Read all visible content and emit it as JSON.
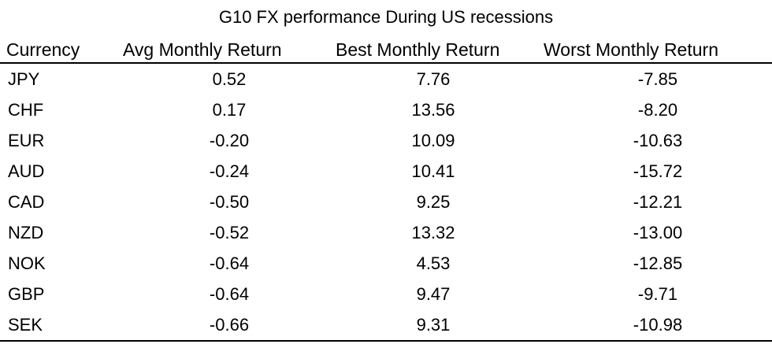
{
  "chart_data": {
    "type": "table",
    "title": "G10 FX performance During US recessions",
    "columns": [
      "Currency",
      "Avg Monthly Return",
      "Best Monthly Return",
      "Worst Monthly Return"
    ],
    "rows": [
      [
        "JPY",
        "0.52",
        "7.76",
        "-7.85"
      ],
      [
        "CHF",
        "0.17",
        "13.56",
        "-8.20"
      ],
      [
        "EUR",
        "-0.20",
        "10.09",
        "-10.63"
      ],
      [
        "AUD",
        "-0.24",
        "10.41",
        "-15.72"
      ],
      [
        "CAD",
        "-0.50",
        "9.25",
        "-12.21"
      ],
      [
        "NZD",
        "-0.52",
        "13.32",
        "-13.00"
      ],
      [
        "NOK",
        "-0.64",
        "4.53",
        "-12.85"
      ],
      [
        "GBP",
        "-0.64",
        "9.47",
        "-9.71"
      ],
      [
        "SEK",
        "-0.66",
        "9.31",
        "-10.98"
      ]
    ]
  }
}
